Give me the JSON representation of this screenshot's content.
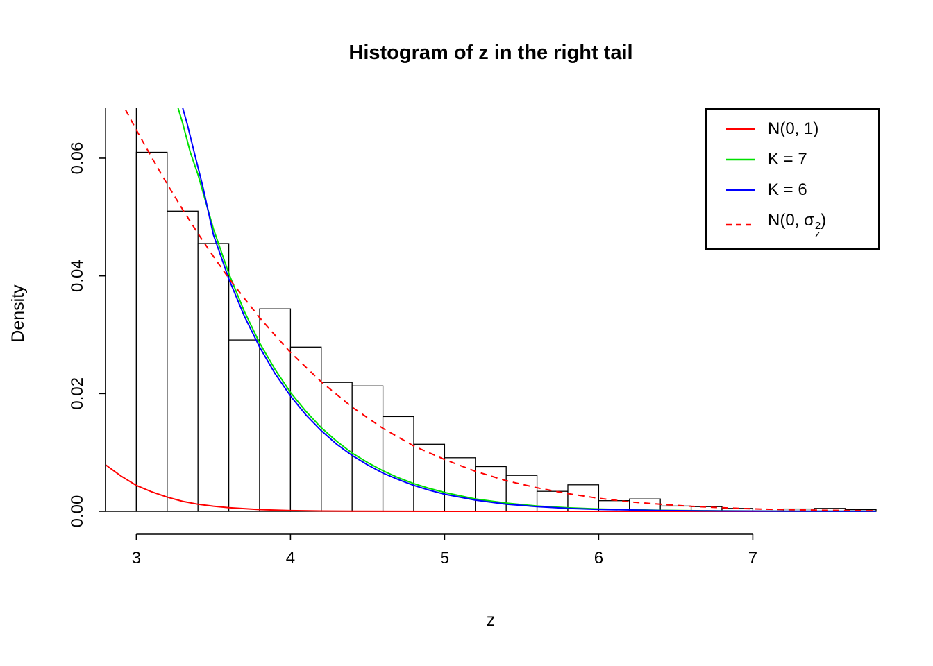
{
  "title": "Histogram of z in the right tail",
  "x_axis": {
    "label": "z",
    "ticks": [
      "3",
      "4",
      "5",
      "6",
      "7"
    ],
    "tick_values": [
      3,
      4,
      5,
      6,
      7
    ],
    "range": [
      2.8,
      7.8
    ]
  },
  "y_axis": {
    "label": "Density",
    "ticks": [
      "0.00",
      "0.02",
      "0.04",
      "0.06"
    ],
    "tick_values": [
      0,
      0.02,
      0.04,
      0.06
    ],
    "range": [
      0,
      0.0686
    ]
  },
  "chart_data": {
    "type": "histogram",
    "title": "Histogram of z in the right tail",
    "xlabel": "z",
    "ylabel": "Density",
    "xlim": [
      2.8,
      7.8
    ],
    "ylim": [
      0,
      0.0686
    ],
    "grid": false,
    "legend_position": "topright",
    "histogram": {
      "bin_start": 2.8,
      "bin_width": 0.2,
      "bar_fill": "#FFFFFF",
      "bar_stroke": "#000000",
      "bin_densities": [
        0.082,
        0.061,
        0.051,
        0.0455,
        0.0291,
        0.0344,
        0.0279,
        0.0219,
        0.0213,
        0.0161,
        0.0114,
        0.0091,
        0.0076,
        0.0061,
        0.0034,
        0.0045,
        0.0018,
        0.0021,
        0.0009,
        0.0008,
        0.0005,
        0,
        0.0004,
        0.0005,
        0.0003
      ],
      "note": "first bin (2.8-3.0) exceeds the visible y range and is clipped at the plot top"
    },
    "curves": [
      {
        "name": "N(0, 1)",
        "color": "#FF0000",
        "style": "solid",
        "x": [
          2.8,
          2.9,
          3.0,
          3.1,
          3.2,
          3.3,
          3.4,
          3.5,
          3.6,
          3.8,
          4.0,
          4.2,
          4.4,
          4.7,
          5.0,
          5.5,
          6.0,
          7.0,
          7.8
        ],
        "y": [
          0.0079,
          0.006,
          0.0044,
          0.0033,
          0.0024,
          0.0017,
          0.0012,
          0.00087,
          0.00061,
          0.00029,
          0.00013,
          6e-05,
          2.5e-05,
          7e-06,
          1.5e-06,
          1e-07,
          0,
          0,
          0
        ]
      },
      {
        "name": "K = 7",
        "color": "#00E000",
        "style": "solid",
        "x": [
          3.27,
          3.3,
          3.35,
          3.4,
          3.5,
          3.6,
          3.7,
          3.8,
          3.9,
          4.0,
          4.1,
          4.2,
          4.3,
          4.4,
          4.5,
          4.6,
          4.7,
          4.8,
          4.9,
          5.0,
          5.2,
          5.4,
          5.6,
          5.8,
          6.0,
          6.4,
          6.8,
          7.2,
          7.8
        ],
        "y": [
          0.0686,
          0.066,
          0.061,
          0.0572,
          0.048,
          0.0404,
          0.034,
          0.0286,
          0.0241,
          0.0202,
          0.017,
          0.0142,
          0.0119,
          0.0099,
          0.0083,
          0.0069,
          0.0057,
          0.0047,
          0.0039,
          0.0032,
          0.0021,
          0.0014,
          0.0009,
          0.0006,
          0.0004,
          0.00018,
          8e-05,
          4e-05,
          1e-05
        ]
      },
      {
        "name": "K = 6",
        "color": "#0000FF",
        "style": "solid",
        "x": [
          3.3,
          3.33,
          3.38,
          3.43,
          3.5,
          3.6,
          3.7,
          3.8,
          3.9,
          4.0,
          4.1,
          4.2,
          4.3,
          4.4,
          4.5,
          4.6,
          4.7,
          4.8,
          4.9,
          5.0,
          5.2,
          5.4,
          5.6,
          5.8,
          6.0,
          6.4,
          6.8,
          7.2,
          7.8
        ],
        "y": [
          0.0686,
          0.0658,
          0.0605,
          0.0553,
          0.047,
          0.0395,
          0.0332,
          0.0279,
          0.0234,
          0.0196,
          0.0164,
          0.0137,
          0.0114,
          0.0095,
          0.0079,
          0.0065,
          0.0054,
          0.0044,
          0.0036,
          0.0029,
          0.0019,
          0.0012,
          0.0008,
          0.0005,
          0.00033,
          0.00014,
          6e-05,
          3e-05,
          1e-05
        ]
      },
      {
        "name": "N(0, σz^2)",
        "color": "#FF0000",
        "style": "dashed",
        "x": [
          2.93,
          3.0,
          3.1,
          3.2,
          3.3,
          3.4,
          3.5,
          3.6,
          3.7,
          3.8,
          3.9,
          4.0,
          4.2,
          4.4,
          4.6,
          4.8,
          5.0,
          5.2,
          5.4,
          5.6,
          5.8,
          6.0,
          6.2,
          6.4,
          6.6,
          6.8,
          7.0,
          7.2,
          7.4,
          7.6,
          7.8
        ],
        "y": [
          0.0682,
          0.0648,
          0.0601,
          0.0556,
          0.0513,
          0.0472,
          0.0433,
          0.0396,
          0.0362,
          0.0329,
          0.0299,
          0.027,
          0.022,
          0.0177,
          0.0141,
          0.0111,
          0.0088,
          0.0068,
          0.0052,
          0.004,
          0.003,
          0.0022,
          0.0016,
          0.0012,
          0.00085,
          0.00061,
          0.00043,
          0.0003,
          0.00021,
          0.00014,
          0.0001
        ]
      }
    ]
  },
  "legend": {
    "position": "topright",
    "entries": [
      {
        "label": "N(0, 1)",
        "color": "#FF0000",
        "style": "solid"
      },
      {
        "label": "K = 7",
        "color": "#00E000",
        "style": "solid"
      },
      {
        "label": "K = 6",
        "color": "#0000FF",
        "style": "solid"
      },
      {
        "label": "N(0, σz²)",
        "label_prefix": "N(0, ",
        "label_sigma": "σ",
        "label_sup": "2",
        "label_sub": "z",
        "label_suffix": ")",
        "color": "#FF0000",
        "style": "dashed"
      }
    ]
  }
}
